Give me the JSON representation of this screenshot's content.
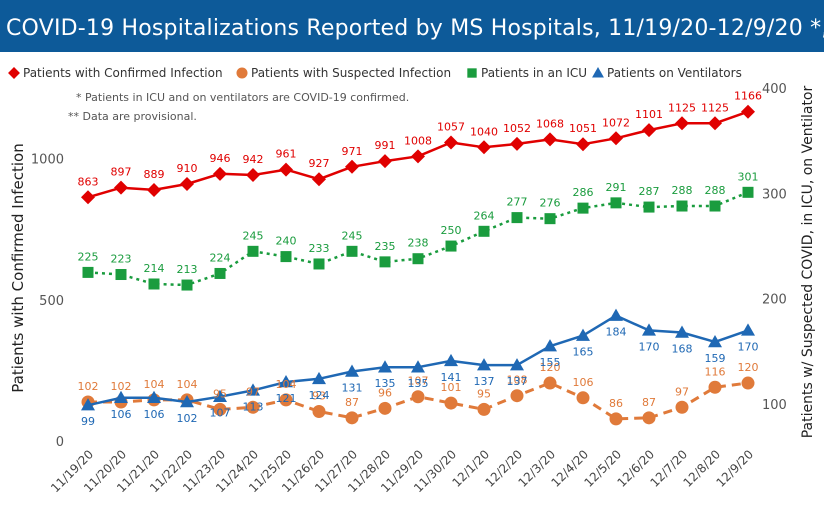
{
  "title": "COVID-19 Hospitalizations Reported by MS Hospitals, 11/19/20-12/9/20 *,**",
  "notes": [
    "* Patients in ICU and on ventilators are COVID-19 confirmed.",
    "** Data are provisional."
  ],
  "colors": {
    "title_bar": "#0d5a99",
    "confirmed": "#e00000",
    "suspected": "#e07a3a",
    "icu": "#1a9c3e",
    "ventilator": "#1f68b4"
  },
  "chart_data": {
    "type": "line",
    "categories": [
      "11/19/20",
      "11/20/20",
      "11/21/20",
      "11/22/20",
      "11/23/20",
      "11/24/20",
      "11/25/20",
      "11/26/20",
      "11/27/20",
      "11/28/20",
      "11/29/20",
      "11/30/20",
      "12/1/20",
      "12/2/20",
      "12/3/20",
      "12/4/20",
      "12/5/20",
      "12/6/20",
      "12/7/20",
      "12/8/20",
      "12/9/20"
    ],
    "ylabel": "Patients with Confirmed Infection",
    "y2label": "Patients w/ Suspected COVID, in ICU, on Ventilator",
    "ylim": [
      0,
      1250
    ],
    "yticks": [
      0,
      500,
      1000
    ],
    "y2lim": [
      65,
      400
    ],
    "y2ticks": [
      100,
      200,
      300,
      400
    ],
    "legend_position": "top",
    "grid": false,
    "series": [
      {
        "name": "Patients with Confirmed Infection",
        "axis": "left",
        "marker": "diamond",
        "line": "solid",
        "values": [
          863,
          897,
          889,
          910,
          946,
          942,
          961,
          927,
          971,
          991,
          1008,
          1057,
          1040,
          1052,
          1068,
          1051,
          1072,
          1101,
          1125,
          1125,
          1166
        ]
      },
      {
        "name": "Patients with Suspected Infection",
        "axis": "right",
        "marker": "circle",
        "line": "dashed",
        "values": [
          102,
          102,
          104,
          104,
          95,
          97,
          104,
          93,
          87,
          96,
          107,
          101,
          95,
          108,
          120,
          106,
          86,
          87,
          97,
          116,
          120
        ]
      },
      {
        "name": "Patients in an ICU",
        "axis": "right",
        "marker": "square",
        "line": "dotted",
        "values": [
          225,
          223,
          214,
          213,
          224,
          245,
          240,
          233,
          245,
          235,
          238,
          250,
          264,
          277,
          276,
          286,
          291,
          287,
          288,
          288,
          301
        ]
      },
      {
        "name": "Patients on Ventilators",
        "axis": "right",
        "marker": "triangle",
        "line": "solid",
        "values": [
          99,
          106,
          106,
          102,
          107,
          113,
          121,
          124,
          131,
          135,
          135,
          141,
          137,
          137,
          155,
          165,
          184,
          170,
          168,
          159,
          170
        ]
      }
    ]
  }
}
